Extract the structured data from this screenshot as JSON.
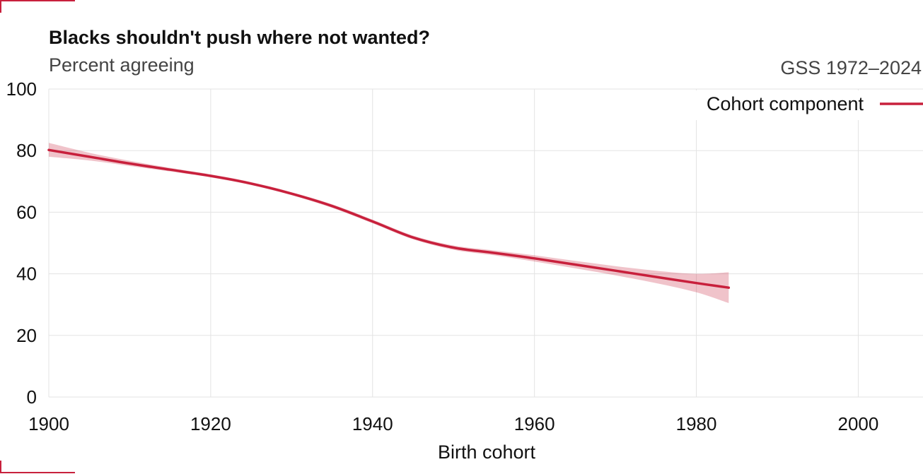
{
  "chart_data": {
    "type": "line",
    "title": "Blacks shouldn't push where not wanted?",
    "subtitle": "Percent agreeing",
    "source": "GSS 1972–2024",
    "xlabel": "Birth cohort",
    "ylabel": "",
    "xlim": [
      1900,
      2008
    ],
    "ylim": [
      0,
      100
    ],
    "x_ticks": [
      "1900",
      "1920",
      "1940",
      "1960",
      "1980",
      "2000"
    ],
    "y_ticks": [
      "0",
      "20",
      "40",
      "60",
      "80",
      "100"
    ],
    "grid": true,
    "legend_position": "top-right",
    "series": [
      {
        "name": "Cohort component",
        "color": "#c8203c",
        "x": [
          1900,
          1905,
          1910,
          1915,
          1920,
          1925,
          1930,
          1935,
          1940,
          1945,
          1950,
          1955,
          1960,
          1965,
          1970,
          1975,
          1980,
          1984
        ],
        "y": [
          80.2,
          78.0,
          75.8,
          73.8,
          71.8,
          69.3,
          66.0,
          62.0,
          57.0,
          51.8,
          48.5,
          46.8,
          45.0,
          43.0,
          41.0,
          39.0,
          37.0,
          35.5
        ],
        "lower": [
          78.0,
          76.8,
          75.0,
          73.2,
          71.3,
          68.8,
          65.5,
          61.4,
          56.4,
          51.2,
          47.8,
          46.0,
          44.0,
          41.8,
          39.5,
          37.0,
          34.0,
          30.5
        ],
        "upper": [
          82.5,
          79.3,
          76.7,
          74.4,
          72.3,
          69.8,
          66.5,
          62.6,
          57.6,
          52.4,
          49.2,
          47.6,
          46.0,
          44.2,
          42.5,
          41.0,
          40.0,
          40.5
        ]
      }
    ]
  }
}
